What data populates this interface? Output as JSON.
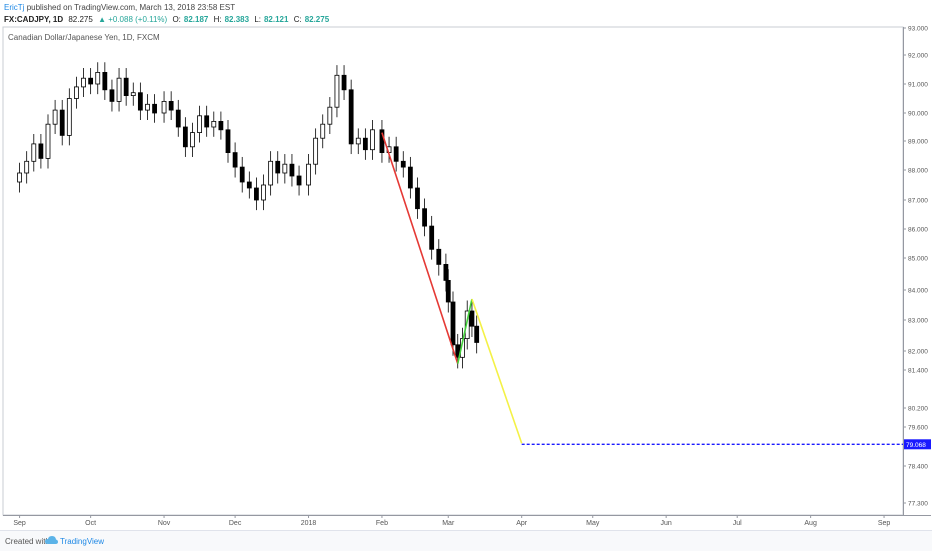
{
  "header": {
    "author": "EricTj",
    "published": "published on TradingView.com, March 13, 2018 23:58 EST",
    "symbol": "FX:CADJPY, 1D",
    "last": "82.275",
    "change": "▲ +0.088 (+0.11%)",
    "o_label": "O:",
    "o": "82.187",
    "h_label": "H:",
    "h": "82.383",
    "l_label": "L:",
    "l": "82.121",
    "c_label": "C:",
    "c": "82.275"
  },
  "footer": {
    "created": "Created with",
    "brand": "TradingView",
    "logo_icon": "tradingview-cloud-icon"
  },
  "chart_data": {
    "type": "candlestick",
    "title": "Canadian Dollar/Japanese Yen, 1D, FXCM",
    "y_ticks": [
      "93.000",
      "92.000",
      "91.000",
      "90.000",
      "89.000",
      "88.000",
      "87.000",
      "86.000",
      "85.000",
      "84.000",
      "83.000",
      "82.000",
      "81.400",
      "80.200",
      "79.600",
      "78.400",
      "77.300"
    ],
    "y_tick_values": [
      93.0,
      92.0,
      91.0,
      90.0,
      89.0,
      88.0,
      87.0,
      86.0,
      85.0,
      84.0,
      83.0,
      82.0,
      81.4,
      80.2,
      79.6,
      78.4,
      77.3
    ],
    "x_ticks": [
      "Sep",
      "Oct",
      "Nov",
      "Dec",
      "2018",
      "Feb",
      "Mar",
      "Apr",
      "May",
      "Jun",
      "Jul",
      "Aug",
      "Sep"
    ],
    "x_tick_dates": [
      "2017-09-01",
      "2017-10-01",
      "2017-11-01",
      "2017-12-01",
      "2018-01-01",
      "2018-02-01",
      "2018-03-01",
      "2018-04-01",
      "2018-05-01",
      "2018-06-01",
      "2018-07-01",
      "2018-08-01",
      "2018-09-01"
    ],
    "closes": [
      [
        "2017-09-01",
        87.9
      ],
      [
        "2017-09-04",
        88.3
      ],
      [
        "2017-09-07",
        88.9
      ],
      [
        "2017-09-10",
        88.4
      ],
      [
        "2017-09-13",
        89.6
      ],
      [
        "2017-09-16",
        90.1
      ],
      [
        "2017-09-19",
        89.2
      ],
      [
        "2017-09-22",
        90.5
      ],
      [
        "2017-09-25",
        90.9
      ],
      [
        "2017-09-28",
        91.2
      ],
      [
        "2017-10-01",
        91.0
      ],
      [
        "2017-10-04",
        91.4
      ],
      [
        "2017-10-07",
        90.8
      ],
      [
        "2017-10-10",
        90.4
      ],
      [
        "2017-10-13",
        91.2
      ],
      [
        "2017-10-16",
        90.6
      ],
      [
        "2017-10-19",
        90.7
      ],
      [
        "2017-10-22",
        90.1
      ],
      [
        "2017-10-25",
        90.3
      ],
      [
        "2017-10-28",
        90.0
      ],
      [
        "2017-11-01",
        90.4
      ],
      [
        "2017-11-04",
        90.1
      ],
      [
        "2017-11-07",
        89.5
      ],
      [
        "2017-11-10",
        88.8
      ],
      [
        "2017-11-13",
        89.3
      ],
      [
        "2017-11-16",
        89.9
      ],
      [
        "2017-11-19",
        89.5
      ],
      [
        "2017-11-22",
        89.7
      ],
      [
        "2017-11-25",
        89.4
      ],
      [
        "2017-11-28",
        88.6
      ],
      [
        "2017-12-01",
        88.1
      ],
      [
        "2017-12-04",
        87.6
      ],
      [
        "2017-12-07",
        87.4
      ],
      [
        "2017-12-10",
        87.0
      ],
      [
        "2017-12-13",
        87.5
      ],
      [
        "2017-12-16",
        88.3
      ],
      [
        "2017-12-19",
        87.9
      ],
      [
        "2017-12-22",
        88.2
      ],
      [
        "2017-12-25",
        87.8
      ],
      [
        "2017-12-28",
        87.5
      ],
      [
        "2018-01-01",
        88.2
      ],
      [
        "2018-01-04",
        89.1
      ],
      [
        "2018-01-07",
        89.6
      ],
      [
        "2018-01-10",
        90.2
      ],
      [
        "2018-01-13",
        91.3
      ],
      [
        "2018-01-16",
        90.8
      ],
      [
        "2018-01-19",
        88.9
      ],
      [
        "2018-01-22",
        89.1
      ],
      [
        "2018-01-25",
        88.7
      ],
      [
        "2018-01-28",
        89.4
      ],
      [
        "2018-02-01",
        88.6
      ],
      [
        "2018-02-04",
        88.8
      ],
      [
        "2018-02-07",
        88.3
      ],
      [
        "2018-02-10",
        88.1
      ],
      [
        "2018-02-13",
        87.4
      ],
      [
        "2018-02-16",
        86.7
      ],
      [
        "2018-02-19",
        86.1
      ],
      [
        "2018-02-22",
        85.3
      ],
      [
        "2018-02-25",
        84.8
      ],
      [
        "2018-02-28",
        84.3
      ],
      [
        "2018-03-01",
        83.6
      ],
      [
        "2018-03-03",
        82.2
      ],
      [
        "2018-03-05",
        81.8
      ],
      [
        "2018-03-07",
        82.4
      ],
      [
        "2018-03-09",
        83.3
      ],
      [
        "2018-03-11",
        82.8
      ],
      [
        "2018-03-13",
        82.275
      ]
    ],
    "trendlines": [
      {
        "color": "#e53935",
        "from": [
          "2018-02-01",
          89.3
        ],
        "to": [
          "2018-03-05",
          81.6
        ]
      },
      {
        "color": "#43d13a",
        "from": [
          "2018-03-05",
          81.6
        ],
        "to": [
          "2018-03-11",
          83.7
        ]
      },
      {
        "color": "#f4f146",
        "from": [
          "2018-03-11",
          83.7
        ],
        "to": [
          "2018-04-01",
          79.1
        ]
      }
    ],
    "target": {
      "date_from": "2018-04-01",
      "value": 79.068,
      "label": "79.068",
      "color": "#1a1aff"
    },
    "grid": false
  }
}
